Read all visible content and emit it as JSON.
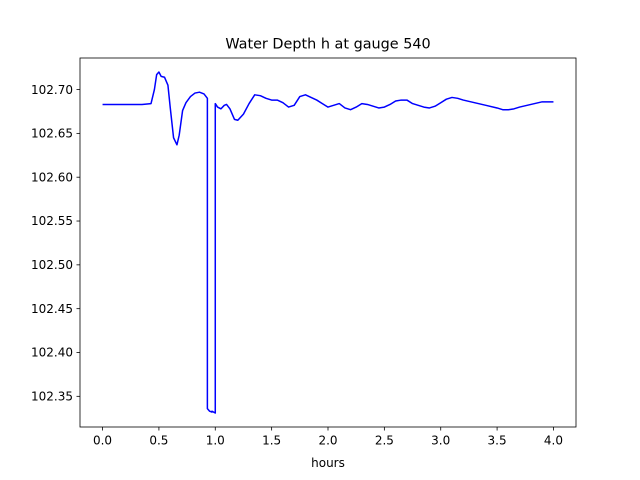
{
  "chart_data": {
    "type": "line",
    "title": "Water Depth h at gauge 540",
    "xlabel": "hours",
    "ylabel": "",
    "xlim": [
      -0.2,
      4.2
    ],
    "ylim": [
      102.315,
      102.736
    ],
    "xticks": [
      0.0,
      0.5,
      1.0,
      1.5,
      2.0,
      2.5,
      3.0,
      3.5,
      4.0
    ],
    "xtick_labels": [
      "0.0",
      "0.5",
      "1.0",
      "1.5",
      "2.0",
      "2.5",
      "3.0",
      "3.5",
      "4.0"
    ],
    "yticks": [
      102.35,
      102.4,
      102.45,
      102.5,
      102.55,
      102.6,
      102.65,
      102.7
    ],
    "ytick_labels": [
      "102.35",
      "102.40",
      "102.45",
      "102.50",
      "102.55",
      "102.60",
      "102.65",
      "102.70"
    ],
    "grid": false,
    "line_color": "#0000ff",
    "series": [
      {
        "x": [
          0.0,
          0.2,
          0.35,
          0.43,
          0.46,
          0.48,
          0.5,
          0.52,
          0.55,
          0.58,
          0.6,
          0.63,
          0.66,
          0.68,
          0.71,
          0.74,
          0.78,
          0.82,
          0.86,
          0.9,
          0.93,
          0.93,
          0.95,
          0.97,
          0.97,
          1.0,
          1.0,
          1.02,
          1.05,
          1.08,
          1.1,
          1.13,
          1.17,
          1.2,
          1.25,
          1.3,
          1.35,
          1.4,
          1.45,
          1.5,
          1.55,
          1.6,
          1.65,
          1.7,
          1.75,
          1.8,
          1.85,
          1.9,
          1.95,
          2.0,
          2.05,
          2.1,
          2.15,
          2.2,
          2.25,
          2.3,
          2.35,
          2.4,
          2.45,
          2.5,
          2.55,
          2.6,
          2.65,
          2.7,
          2.75,
          2.8,
          2.85,
          2.9,
          2.95,
          3.0,
          3.05,
          3.1,
          3.15,
          3.2,
          3.3,
          3.4,
          3.5,
          3.55,
          3.6,
          3.65,
          3.7,
          3.8,
          3.9,
          4.0
        ],
        "y": [
          102.683,
          102.683,
          102.683,
          102.684,
          102.7,
          102.717,
          102.72,
          102.715,
          102.714,
          102.705,
          102.68,
          102.645,
          102.637,
          102.648,
          102.676,
          102.685,
          102.692,
          102.696,
          102.697,
          102.695,
          102.69,
          102.336,
          102.333,
          102.332,
          102.333,
          102.331,
          102.684,
          102.68,
          102.678,
          102.682,
          102.683,
          102.678,
          102.666,
          102.665,
          102.672,
          102.684,
          102.694,
          102.693,
          102.69,
          102.688,
          102.688,
          102.685,
          102.68,
          102.682,
          102.692,
          102.694,
          102.691,
          102.688,
          102.684,
          102.68,
          102.682,
          102.684,
          102.679,
          102.677,
          102.68,
          102.684,
          102.683,
          102.681,
          102.679,
          102.68,
          102.683,
          102.687,
          102.688,
          102.688,
          102.684,
          102.682,
          102.68,
          102.679,
          102.681,
          102.685,
          102.689,
          102.691,
          102.69,
          102.688,
          102.685,
          102.682,
          102.679,
          102.677,
          102.677,
          102.678,
          102.68,
          102.683,
          102.686,
          102.686
        ]
      }
    ]
  }
}
